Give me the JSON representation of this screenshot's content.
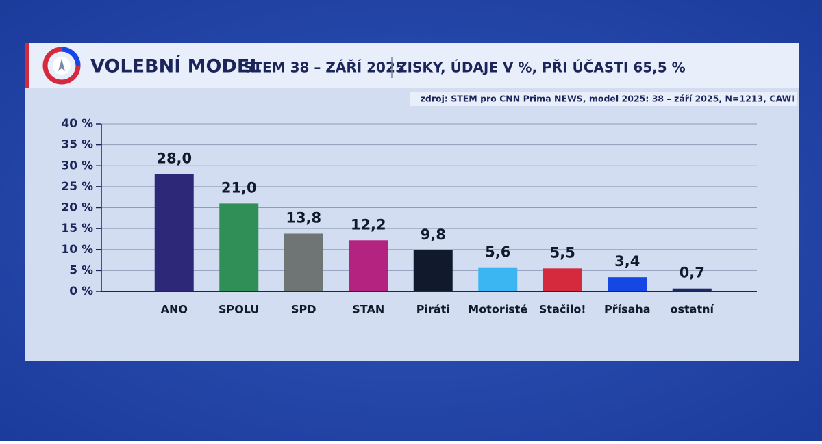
{
  "chart_data": {
    "type": "bar",
    "title": "VOLEBNÍ MODEL",
    "subtitle": "STEM 38 – ZÁŘÍ 2025",
    "note": "ZISKY, ÚDAJE V %, PŘI ÚČASTI 65,5 %",
    "source": "zdroj: STEM pro CNN Prima NEWS, model 2025: 38 – září 2025, N=1213, CAWI",
    "categories": [
      "ANO",
      "SPOLU",
      "SPD",
      "STAN",
      "Piráti",
      "Motoristé",
      "Stačilo!",
      "Přísaha",
      "ostatní"
    ],
    "values": [
      28.0,
      21.0,
      13.8,
      12.2,
      9.8,
      5.6,
      5.5,
      3.4,
      0.7
    ],
    "value_labels": [
      "28,0",
      "21,0",
      "13,8",
      "12,2",
      "9,8",
      "5,6",
      "5,5",
      "3,4",
      "0,7"
    ],
    "colors": [
      "#2d2878",
      "#2f8f56",
      "#6f7574",
      "#b3237f",
      "#111a2c",
      "#3cb6f3",
      "#d52a3d",
      "#1447e4",
      "#1b2a62"
    ],
    "ylim": [
      0,
      40
    ],
    "yticks": [
      {
        "value": 0,
        "label": "0 %"
      },
      {
        "value": 5,
        "label": "5 %"
      },
      {
        "value": 10,
        "label": "10 %"
      },
      {
        "value": 15,
        "label": "15 %"
      },
      {
        "value": 20,
        "label": "20 %"
      },
      {
        "value": 25,
        "label": "25 %"
      },
      {
        "value": 30,
        "label": "30 %"
      },
      {
        "value": 35,
        "label": "35 %"
      },
      {
        "value": 40,
        "label": "40 %"
      }
    ],
    "grid": true
  }
}
